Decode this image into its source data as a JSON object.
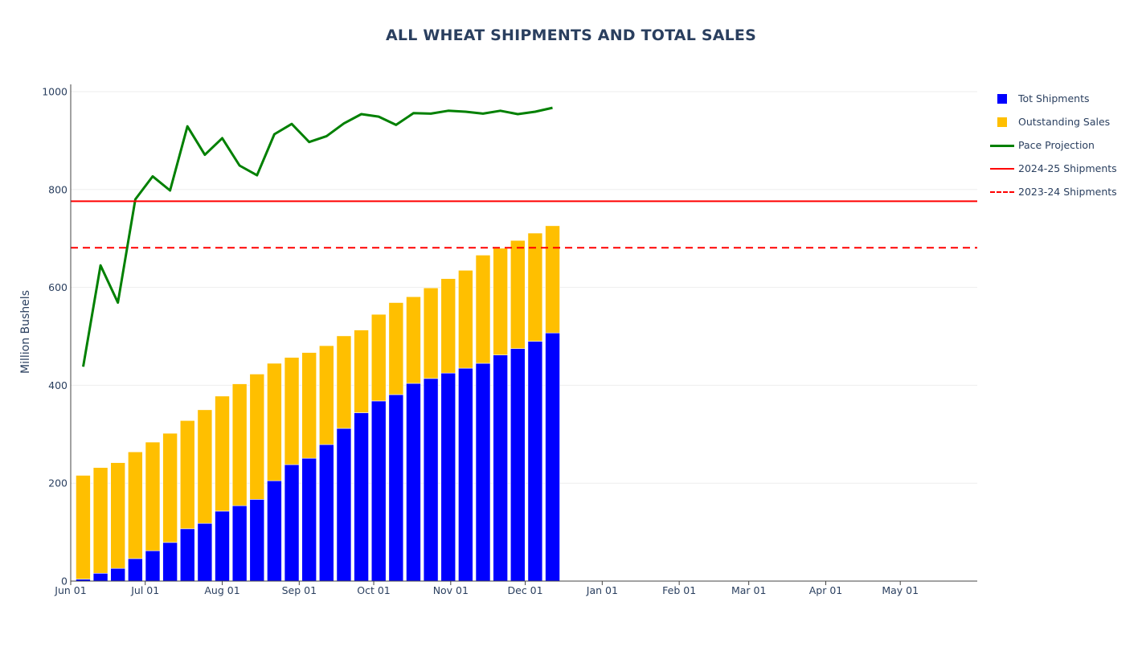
{
  "chart_data": {
    "type": "bar",
    "title": "ALL WHEAT SHIPMENTS AND TOTAL SALES",
    "xlabel": "",
    "ylabel": "Million Bushels",
    "ylim": [
      0,
      1000
    ],
    "y_ticks": [
      "0",
      "200",
      "400",
      "600",
      "800",
      "1000"
    ],
    "x_ticks": [
      "Jun 01",
      "Jul 01",
      "Aug 01",
      "Sep 01",
      "Oct 01",
      "Nov 01",
      "Dec 01",
      "Jan 01",
      "Feb 01",
      "Mar 01",
      "Apr 01",
      "May 01"
    ],
    "x_range": [
      "2024-06-01",
      "2025-05-31"
    ],
    "barmode": "stack",
    "legend_position": "right",
    "grid": true,
    "x": [
      "2024-06-06",
      "2024-06-13",
      "2024-06-20",
      "2024-06-27",
      "2024-07-04",
      "2024-07-11",
      "2024-07-18",
      "2024-07-25",
      "2024-08-01",
      "2024-08-08",
      "2024-08-15",
      "2024-08-22",
      "2024-08-29",
      "2024-09-05",
      "2024-09-12",
      "2024-09-19",
      "2024-09-26",
      "2024-10-03",
      "2024-10-10",
      "2024-10-17",
      "2024-10-24",
      "2024-10-31",
      "2024-11-07",
      "2024-11-14",
      "2024-11-21",
      "2024-11-28",
      "2024-12-05",
      "2024-12-12",
      "2024-12-19"
    ],
    "series": [
      {
        "name": "Tot Shipments",
        "type": "bar",
        "color": "#0000ff",
        "values": [
          4,
          16,
          26,
          46,
          62,
          79,
          107,
          118,
          143,
          154,
          167,
          205,
          238,
          251,
          279,
          312,
          344,
          368,
          381,
          404,
          414,
          425,
          435,
          445,
          462,
          475,
          490,
          507,
          0
        ]
      },
      {
        "name": "Outstanding Sales",
        "type": "bar",
        "color": "#ffbf00",
        "values": [
          212,
          216,
          216,
          218,
          222,
          223,
          221,
          232,
          235,
          249,
          256,
          240,
          219,
          216,
          202,
          189,
          169,
          177,
          188,
          177,
          185,
          193,
          200,
          221,
          218,
          221,
          221,
          219,
          0
        ]
      },
      {
        "name": "Pace Projection",
        "type": "line",
        "color": "#008000",
        "values": [
          438,
          645,
          569,
          780,
          827,
          798,
          929,
          871,
          905,
          849,
          829,
          913,
          934,
          897,
          909,
          935,
          954,
          949,
          932,
          956,
          955,
          961,
          959,
          955,
          961,
          954,
          959,
          967,
          null
        ]
      },
      {
        "name": "2024-25 Shipments",
        "type": "hline",
        "color": "#ff0000",
        "style": "solid",
        "value": 776
      },
      {
        "name": "2023-24 Shipments",
        "type": "hline",
        "color": "#ff0000",
        "style": "dash",
        "value": 681
      }
    ]
  }
}
